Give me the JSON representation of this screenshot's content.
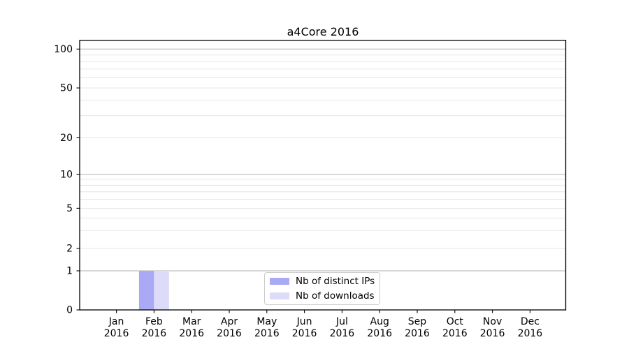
{
  "chart_data": {
    "type": "bar",
    "title": "a4Core 2016",
    "categories": [
      "Jan",
      "Feb",
      "Mar",
      "Apr",
      "May",
      "Jun",
      "Jul",
      "Aug",
      "Sep",
      "Oct",
      "Nov",
      "Dec"
    ],
    "year_label": "2016",
    "series": [
      {
        "name": "Nb of distinct IPs",
        "color": "#a9a9f6",
        "values": [
          0,
          1,
          0,
          0,
          0,
          0,
          0,
          0,
          0,
          0,
          0,
          0
        ]
      },
      {
        "name": "Nb of downloads",
        "color": "#dcdcf8",
        "values": [
          0,
          1,
          0,
          0,
          0,
          0,
          0,
          0,
          0,
          0,
          0,
          0
        ]
      }
    ],
    "y_axis": {
      "scale": "log-like",
      "tick_values": [
        0,
        1,
        2,
        5,
        10,
        20,
        50,
        100
      ],
      "minor_grid_values": [
        3,
        4,
        6,
        7,
        8,
        9,
        30,
        40,
        60,
        70,
        80,
        90
      ],
      "major_grid_values": [
        1,
        10,
        100
      ]
    },
    "legend": {
      "position": "lower center"
    },
    "grid": true,
    "colors": {
      "major_grid": "#b2b2b2",
      "minor_grid": "#e4e4e4",
      "axis": "#000000",
      "tick_label": "#000000",
      "legend_border": "#cccccc"
    }
  }
}
